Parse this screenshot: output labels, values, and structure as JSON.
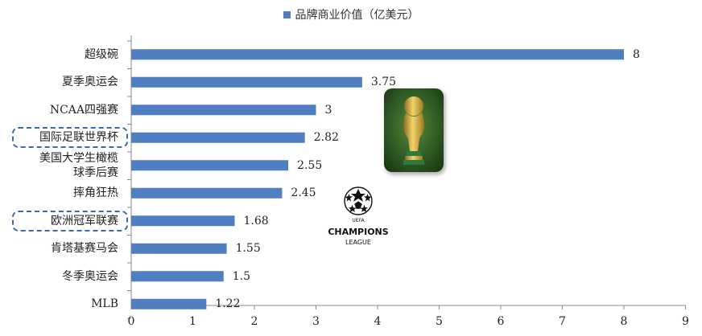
{
  "legend": {
    "label": "品牌商业价值（亿美元）",
    "color": "#4f7fc0"
  },
  "chart_data": {
    "type": "bar",
    "orientation": "horizontal",
    "categories": [
      "超级碗",
      "夏季奥运会",
      "NCAA四强赛",
      "国际足联世界杯",
      "美国大学生橄榄\n球季后赛",
      "摔角狂热",
      "欧洲冠军联赛",
      "肯塔基赛马会",
      "冬季奥运会",
      "MLB"
    ],
    "series": [
      {
        "name": "品牌商业价值（亿美元）",
        "values": [
          8,
          3.75,
          3,
          2.82,
          2.55,
          2.45,
          1.68,
          1.55,
          1.5,
          1.22
        ]
      }
    ],
    "value_labels": [
      "8",
      "3.75",
      "3",
      "2.82",
      "2.55",
      "2.45",
      "1.68",
      "1.55",
      "1.5",
      "1.22"
    ],
    "xlim": [
      0,
      9
    ],
    "xticks": [
      "0",
      "1",
      "2",
      "3",
      "4",
      "5",
      "6",
      "7",
      "8",
      "9"
    ],
    "highlighted_categories": [
      "国际足联世界杯",
      "欧洲冠军联赛"
    ],
    "bar_color": "#4f7fc0",
    "grid": false,
    "legend_position": "top-center"
  },
  "logos": {
    "champions_line1": "CHAMPIONS",
    "champions_line2": "LEAGUE",
    "uefa": "UEFA"
  }
}
